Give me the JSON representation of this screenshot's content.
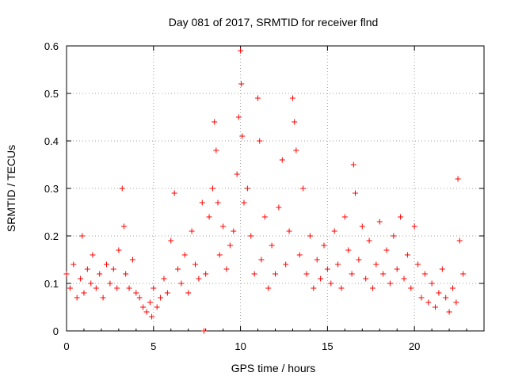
{
  "chart_data": {
    "type": "scatter",
    "title": "Day 081 of 2017, SRMTID for receiver flnd",
    "xlabel": "GPS time / hours",
    "ylabel": "SRMTID / TECUs",
    "xlim": [
      0,
      24
    ],
    "ylim": [
      0,
      0.6
    ],
    "xticks": [
      0,
      5,
      10,
      15,
      20
    ],
    "yticks": [
      0,
      0.1,
      0.2,
      0.3,
      0.4,
      0.5,
      0.6
    ],
    "xtick_labels": [
      "0",
      "5",
      "10",
      "15",
      "20"
    ],
    "ytick_labels": [
      "0",
      "0.1",
      "0.2",
      "0.3",
      "0.4",
      "0.5",
      "0.6"
    ],
    "grid": true,
    "marker": "+",
    "color": "#ff0000",
    "series": [
      {
        "name": "SRMTID",
        "x": [
          0.0,
          0.2,
          0.4,
          0.6,
          0.8,
          0.9,
          1.0,
          1.2,
          1.4,
          1.5,
          1.7,
          1.9,
          2.1,
          2.3,
          2.5,
          2.7,
          2.9,
          3.0,
          3.2,
          3.3,
          3.4,
          3.6,
          3.8,
          4.0,
          4.2,
          4.4,
          4.6,
          4.8,
          4.9,
          5.0,
          5.2,
          5.4,
          5.6,
          5.8,
          6.0,
          6.2,
          6.4,
          6.6,
          6.8,
          7.0,
          7.2,
          7.4,
          7.6,
          7.8,
          7.9,
          8.0,
          8.2,
          8.4,
          8.5,
          8.6,
          8.7,
          8.8,
          9.0,
          9.2,
          9.4,
          9.6,
          9.8,
          9.9,
          10.0,
          10.05,
          10.1,
          10.2,
          10.4,
          10.6,
          10.8,
          11.0,
          11.1,
          11.2,
          11.4,
          11.6,
          11.8,
          12.0,
          12.2,
          12.4,
          12.6,
          12.8,
          13.0,
          13.1,
          13.2,
          13.4,
          13.6,
          13.8,
          14.0,
          14.2,
          14.4,
          14.6,
          14.8,
          15.0,
          15.2,
          15.4,
          15.6,
          15.8,
          16.0,
          16.2,
          16.4,
          16.5,
          16.6,
          16.8,
          17.0,
          17.2,
          17.4,
          17.6,
          17.8,
          18.0,
          18.2,
          18.4,
          18.6,
          18.8,
          19.0,
          19.2,
          19.4,
          19.6,
          19.8,
          20.0,
          20.2,
          20.4,
          20.6,
          20.8,
          21.0,
          21.2,
          21.4,
          21.6,
          21.8,
          22.0,
          22.2,
          22.4,
          22.5,
          22.6,
          22.8
        ],
        "y": [
          0.12,
          0.09,
          0.14,
          0.07,
          0.11,
          0.2,
          0.08,
          0.13,
          0.1,
          0.16,
          0.09,
          0.12,
          0.07,
          0.14,
          0.1,
          0.13,
          0.09,
          0.17,
          0.3,
          0.22,
          0.12,
          0.09,
          0.15,
          0.08,
          0.07,
          0.05,
          0.04,
          0.06,
          0.03,
          0.09,
          0.05,
          0.07,
          0.11,
          0.08,
          0.19,
          0.29,
          0.13,
          0.1,
          0.16,
          0.08,
          0.21,
          0.14,
          0.11,
          0.27,
          0.0,
          0.12,
          0.24,
          0.3,
          0.44,
          0.38,
          0.27,
          0.16,
          0.22,
          0.13,
          0.18,
          0.21,
          0.33,
          0.45,
          0.59,
          0.52,
          0.41,
          0.27,
          0.3,
          0.2,
          0.12,
          0.49,
          0.4,
          0.15,
          0.24,
          0.09,
          0.18,
          0.12,
          0.26,
          0.36,
          0.14,
          0.21,
          0.49,
          0.44,
          0.38,
          0.16,
          0.3,
          0.12,
          0.2,
          0.09,
          0.15,
          0.11,
          0.18,
          0.13,
          0.1,
          0.21,
          0.14,
          0.09,
          0.24,
          0.17,
          0.12,
          0.35,
          0.29,
          0.15,
          0.22,
          0.11,
          0.19,
          0.09,
          0.14,
          0.23,
          0.12,
          0.17,
          0.1,
          0.2,
          0.13,
          0.24,
          0.11,
          0.16,
          0.09,
          0.22,
          0.14,
          0.07,
          0.12,
          0.06,
          0.1,
          0.05,
          0.08,
          0.13,
          0.07,
          0.04,
          0.09,
          0.06,
          0.32,
          0.19,
          0.12
        ]
      }
    ]
  }
}
